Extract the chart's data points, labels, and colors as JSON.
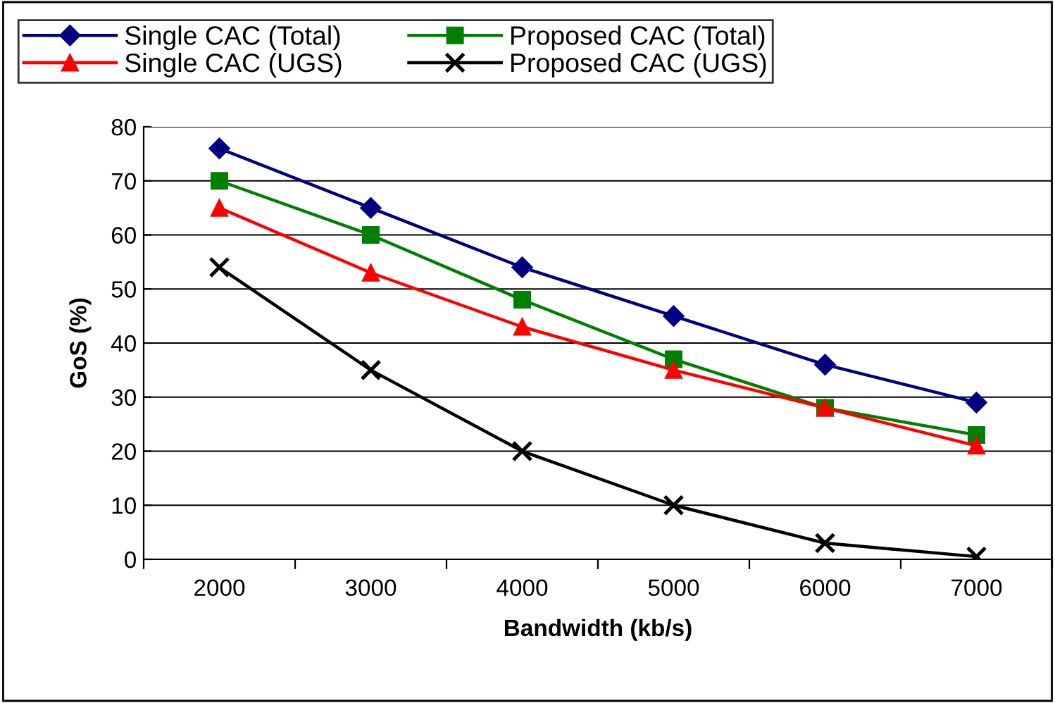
{
  "chart_data": {
    "type": "line",
    "xlabel": "Bandwidth (kb/s)",
    "ylabel": "GoS (%)",
    "categories": [
      "2000",
      "3000",
      "4000",
      "5000",
      "6000",
      "7000"
    ],
    "series": [
      {
        "name": "Single CAC (Total)",
        "color": "#000080",
        "marker": "diamond",
        "values": [
          76,
          65,
          54,
          45,
          36,
          29
        ]
      },
      {
        "name": "Single CAC (UGS)",
        "color": "#ff0000",
        "marker": "triangle",
        "values": [
          65,
          53,
          43,
          35,
          28,
          21
        ]
      },
      {
        "name": "Proposed CAC (Total)",
        "color": "#008000",
        "marker": "square",
        "values": [
          70,
          60,
          48,
          37,
          28,
          23
        ]
      },
      {
        "name": "Proposed CAC (UGS)",
        "color": "#000000",
        "marker": "cross",
        "values": [
          54,
          35,
          20,
          10,
          3,
          0.5
        ]
      }
    ],
    "ylim": [
      0,
      80
    ],
    "yticks": [
      0,
      10,
      20,
      30,
      40,
      50,
      60,
      70,
      80
    ],
    "grid": "y",
    "legend": "top left"
  }
}
